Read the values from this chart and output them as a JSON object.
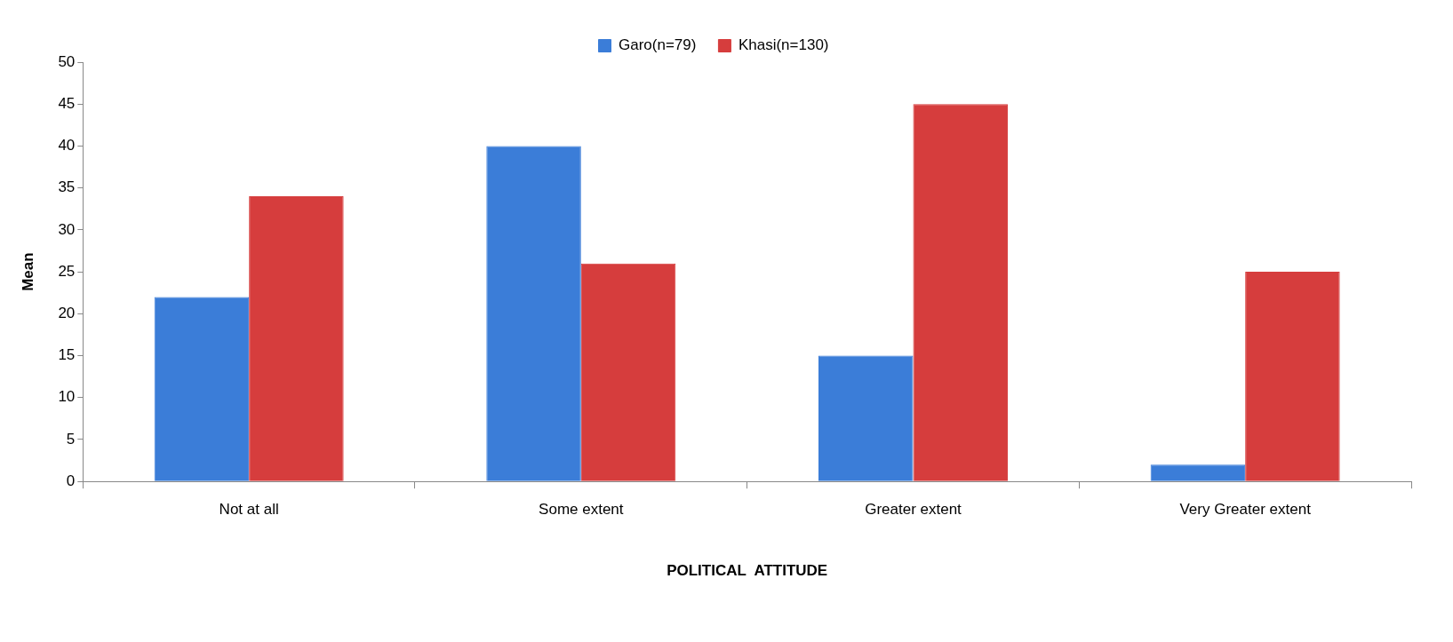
{
  "chart_data": {
    "type": "bar",
    "xlabel": "POLITICAL  ATTITUDE",
    "ylabel": "Mean",
    "categories": [
      "Not at all",
      "Some extent",
      "Greater extent",
      "Very Greater extent"
    ],
    "series": [
      {
        "name": "Garo(n=79)",
        "color": "#3b7dd8",
        "values": [
          22,
          40,
          15,
          2
        ]
      },
      {
        "name": "Khasi(n=130)",
        "color": "#d63d3d",
        "values": [
          34,
          26,
          45,
          25
        ]
      }
    ],
    "ylim": [
      0,
      50
    ],
    "yticks": [
      0,
      5,
      10,
      15,
      20,
      25,
      30,
      35,
      40,
      45,
      50
    ],
    "legend": "top"
  }
}
